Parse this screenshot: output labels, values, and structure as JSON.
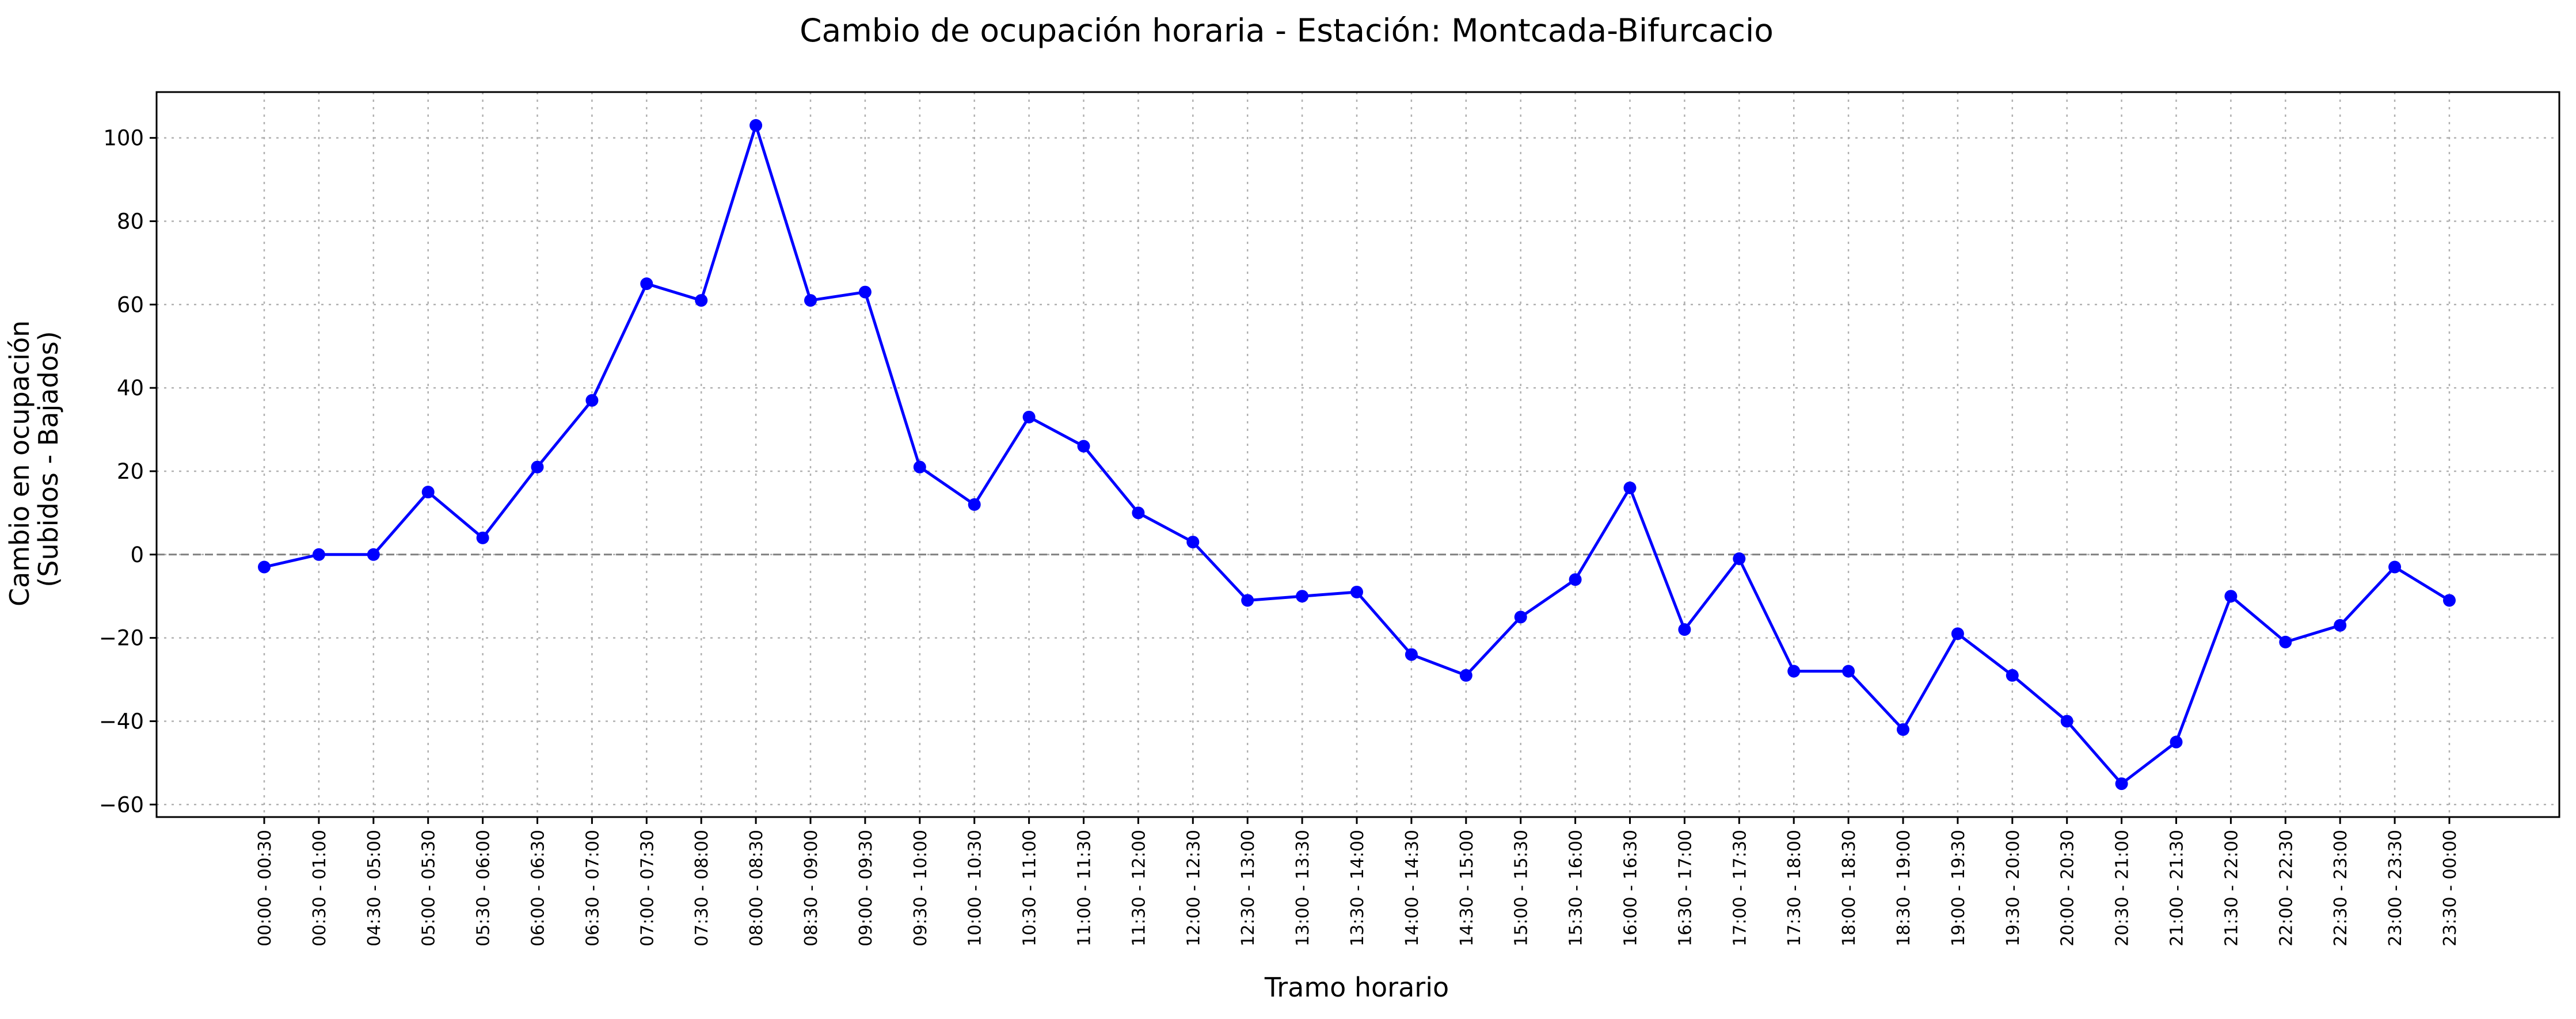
{
  "chart_data": {
    "type": "line",
    "title": "Cambio de ocupación horaria - Estación: Montcada-Bifurcacio",
    "xlabel": "Tramo horario",
    "ylabel_lines": [
      "Cambio en ocupación",
      "(Subidos - Bajados)"
    ],
    "categories": [
      "00:00 - 00:30",
      "00:30 - 01:00",
      "04:30 - 05:00",
      "05:00 - 05:30",
      "05:30 - 06:00",
      "06:00 - 06:30",
      "06:30 - 07:00",
      "07:00 - 07:30",
      "07:30 - 08:00",
      "08:00 - 08:30",
      "08:30 - 09:00",
      "09:00 - 09:30",
      "09:30 - 10:00",
      "10:00 - 10:30",
      "10:30 - 11:00",
      "11:00 - 11:30",
      "11:30 - 12:00",
      "12:00 - 12:30",
      "12:30 - 13:00",
      "13:00 - 13:30",
      "13:30 - 14:00",
      "14:00 - 14:30",
      "14:30 - 15:00",
      "15:00 - 15:30",
      "15:30 - 16:00",
      "16:00 - 16:30",
      "16:30 - 17:00",
      "17:00 - 17:30",
      "17:30 - 18:00",
      "18:00 - 18:30",
      "18:30 - 19:00",
      "19:00 - 19:30",
      "19:30 - 20:00",
      "20:00 - 20:30",
      "20:30 - 21:00",
      "21:00 - 21:30",
      "21:30 - 22:00",
      "22:00 - 22:30",
      "22:30 - 23:00",
      "23:00 - 23:30",
      "23:30 - 00:00"
    ],
    "values": [
      -3,
      0,
      0,
      15,
      4,
      21,
      37,
      65,
      61,
      103,
      61,
      63,
      21,
      12,
      33,
      26,
      10,
      3,
      -11,
      -10,
      -9,
      -24,
      -29,
      -15,
      -6,
      16,
      -18,
      -1,
      -28,
      -28,
      -42,
      -19,
      -29,
      -40,
      -55,
      -45,
      -10,
      -21,
      -17,
      -3,
      -11
    ],
    "yticks": [
      -60,
      -40,
      -20,
      0,
      20,
      40,
      60,
      80,
      100
    ],
    "ylim": [
      -63,
      111
    ],
    "reference_line": 0,
    "grid": true,
    "line_color": "#0000ff",
    "reference_color": "#808080"
  }
}
